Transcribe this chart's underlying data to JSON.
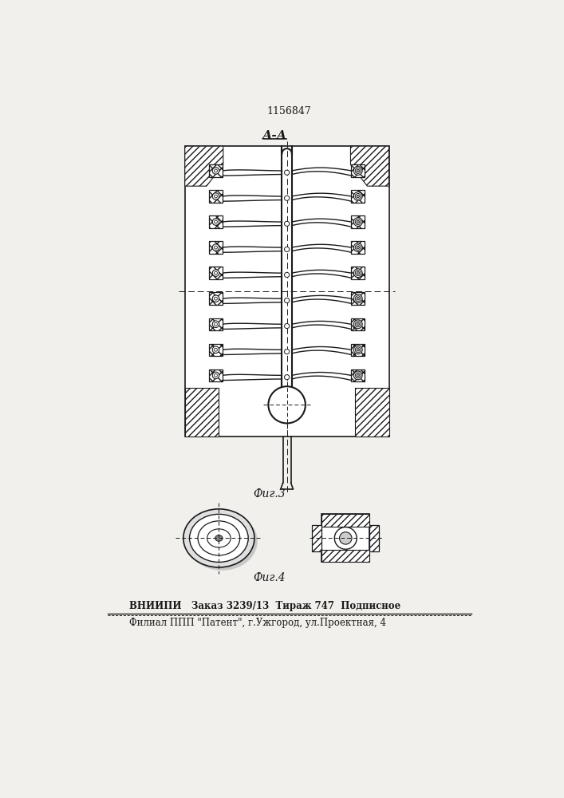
{
  "patent_number": "1156847",
  "section_label": "А-А",
  "fig3_label": "Фиг.3",
  "fig4_label": "Фиг.4",
  "footer_line1": "ВНИИПИ   Заказ 3239/13  Тираж 747  Подписное",
  "footer_line2": "Филиал ППП \"Патент\", г.Ужгород, ул.Проектная, 4",
  "paper_color": "#f2f0ec",
  "line_color": "#1a1a1a"
}
